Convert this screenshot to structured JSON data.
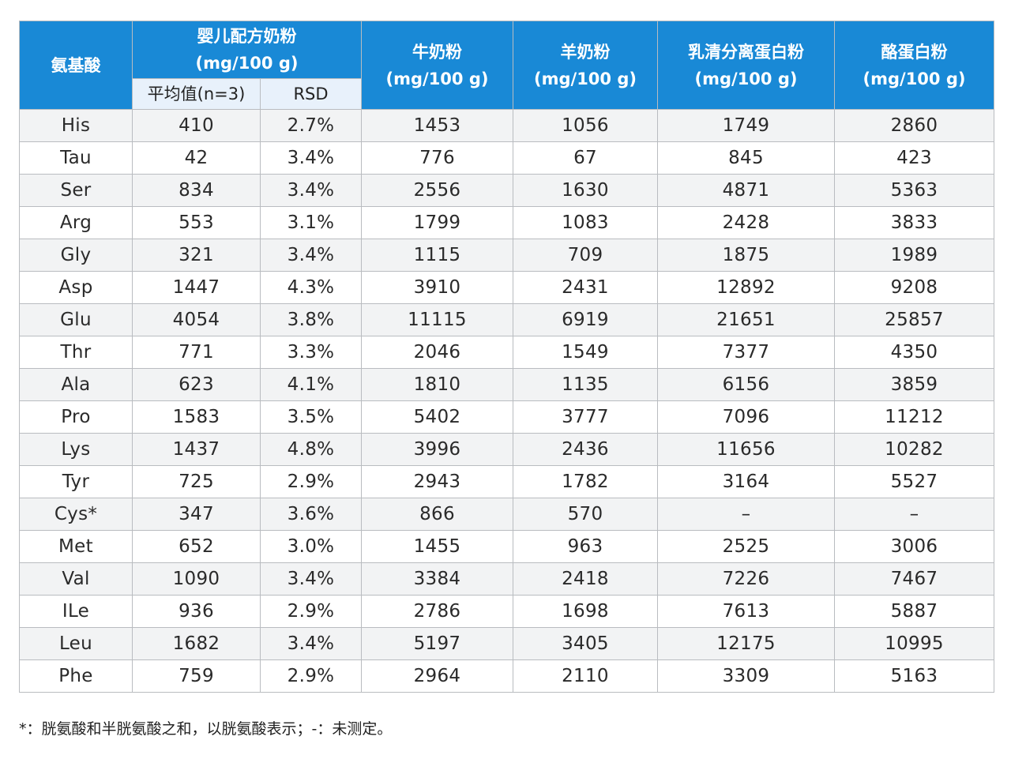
{
  "table": {
    "header": {
      "amino_acid": "氨基酸",
      "infant_formula": {
        "line1": "婴儿配方奶粉",
        "line2": "(mg/100 g)"
      },
      "sub_mean": "平均值(n=3)",
      "sub_rsd": "RSD",
      "cow_milk": {
        "line1": "牛奶粉",
        "line2": "(mg/100 g)"
      },
      "goat_milk": {
        "line1": "羊奶粉",
        "line2": "(mg/100 g)"
      },
      "whey": {
        "line1": "乳清分离蛋白粉",
        "line2": "(mg/100 g)"
      },
      "casein": {
        "line1": "酪蛋白粉",
        "line2": "(mg/100 g)"
      }
    },
    "rows": [
      [
        "His",
        "410",
        "2.7%",
        "1453",
        "1056",
        "1749",
        "2860"
      ],
      [
        "Tau",
        "42",
        "3.4%",
        "776",
        "67",
        "845",
        "423"
      ],
      [
        "Ser",
        "834",
        "3.4%",
        "2556",
        "1630",
        "4871",
        "5363"
      ],
      [
        "Arg",
        "553",
        "3.1%",
        "1799",
        "1083",
        "2428",
        "3833"
      ],
      [
        "Gly",
        "321",
        "3.4%",
        "1115",
        "709",
        "1875",
        "1989"
      ],
      [
        "Asp",
        "1447",
        "4.3%",
        "3910",
        "2431",
        "12892",
        "9208"
      ],
      [
        "Glu",
        "4054",
        "3.8%",
        "11115",
        "6919",
        "21651",
        "25857"
      ],
      [
        "Thr",
        "771",
        "3.3%",
        "2046",
        "1549",
        "7377",
        "4350"
      ],
      [
        "Ala",
        "623",
        "4.1%",
        "1810",
        "1135",
        "6156",
        "3859"
      ],
      [
        "Pro",
        "1583",
        "3.5%",
        "5402",
        "3777",
        "7096",
        "11212"
      ],
      [
        "Lys",
        "1437",
        "4.8%",
        "3996",
        "2436",
        "11656",
        "10282"
      ],
      [
        "Tyr",
        "725",
        "2.9%",
        "2943",
        "1782",
        "3164",
        "5527"
      ],
      [
        "Cys*",
        "347",
        "3.6%",
        "866",
        "570",
        "–",
        "–"
      ],
      [
        "Met",
        "652",
        "3.0%",
        "1455",
        "963",
        "2525",
        "3006"
      ],
      [
        "Val",
        "1090",
        "3.4%",
        "3384",
        "2418",
        "7226",
        "7467"
      ],
      [
        "ILe",
        "936",
        "2.9%",
        "2786",
        "1698",
        "7613",
        "5887"
      ],
      [
        "Leu",
        "1682",
        "3.4%",
        "5197",
        "3405",
        "12175",
        "10995"
      ],
      [
        "Phe",
        "759",
        "2.9%",
        "2964",
        "2110",
        "3309",
        "5163"
      ]
    ]
  },
  "footnote": "*：胱氨酸和半胱氨酸之和，以胱氨酸表示；-：未测定。",
  "colors": {
    "header_bg": "#1989d6",
    "subheader_bg": "#e8f1fb",
    "stripe_bg": "#f2f3f4",
    "border": "#b9bcc0"
  }
}
